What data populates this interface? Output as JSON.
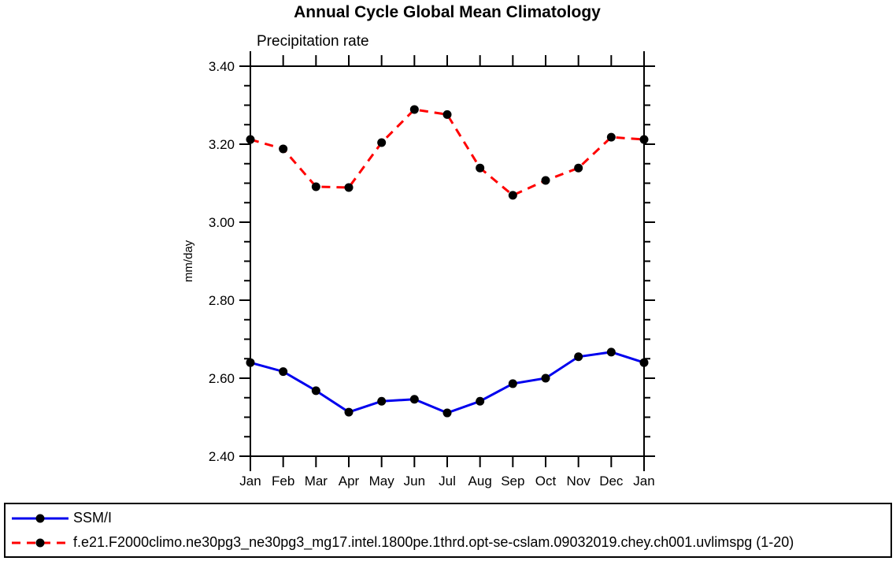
{
  "title": "Annual Cycle Global Mean Climatology",
  "subtitle": "Precipitation rate",
  "chart_data": {
    "type": "line",
    "title": "Annual Cycle Global Mean Climatology",
    "subtitle": "Precipitation rate",
    "xlabel": "",
    "ylabel": "mm/day",
    "categories": [
      "Jan",
      "Feb",
      "Mar",
      "Apr",
      "May",
      "Jun",
      "Jul",
      "Aug",
      "Sep",
      "Oct",
      "Nov",
      "Dec",
      "Jan"
    ],
    "ylim": [
      2.4,
      3.4
    ],
    "ytick_major": [
      2.4,
      2.6,
      2.8,
      3.0,
      3.2,
      3.4
    ],
    "ytick_minor_step": 0.05,
    "grid": false,
    "legend_position": "bottom-box",
    "series": [
      {
        "name": "SSM/I",
        "color": "#0000EE",
        "line_style": "solid",
        "marker": "black-filled-circle",
        "values": [
          2.64,
          2.617,
          2.568,
          2.513,
          2.541,
          2.546,
          2.511,
          2.541,
          2.586,
          2.6,
          2.655,
          2.667,
          2.64
        ]
      },
      {
        "name": "f.e21.F2000climo.ne30pg3_ne30pg3_mg17.intel.1800pe.1thrd.opt-se-cslam.09032019.chey.ch001.uvlimspg (1-20)",
        "color": "#FF0000",
        "line_style": "dashed",
        "marker": "black-filled-circle",
        "values": [
          3.212,
          3.188,
          3.091,
          3.089,
          3.204,
          3.289,
          3.276,
          3.139,
          3.069,
          3.107,
          3.139,
          3.218,
          3.212
        ]
      }
    ]
  },
  "legend": {
    "entries": [
      {
        "label": "SSM/I",
        "color": "#0000EE",
        "line_style": "solid",
        "marker_color": "#000000"
      },
      {
        "label": "f.e21.F2000climo.ne30pg3_ne30pg3_mg17.intel.1800pe.1thrd.opt-se-cslam.09032019.chey.ch001.uvlimspg (1-20)",
        "color": "#FF0000",
        "line_style": "dashed",
        "marker_color": "#000000"
      }
    ]
  },
  "colors": {
    "axis": "#000000",
    "text": "#000000",
    "background": "#FFFFFF",
    "series_blue": "#0000EE",
    "series_red": "#FF0000"
  }
}
